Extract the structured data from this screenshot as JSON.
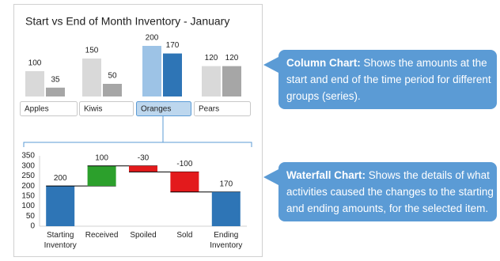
{
  "chart_data": [
    {
      "type": "grouped-bar",
      "title": "Start vs End of Month Inventory - January",
      "categories": [
        "Apples",
        "Kiwis",
        "Oranges",
        "Pears"
      ],
      "series": [
        {
          "color": "#d9d9d9",
          "values": [
            100,
            150,
            200,
            120
          ]
        },
        {
          "color": "#a6a6a6",
          "values": [
            35,
            50,
            170,
            120
          ]
        }
      ],
      "selected": 2,
      "selected_colors": [
        "#9dc3e6",
        "#2e75b6"
      ],
      "ylim": [
        0,
        200
      ]
    },
    {
      "type": "waterfall",
      "categories": [
        "Starting Inventory",
        "Received",
        "Spoiled",
        "Sold",
        "Ending Inventory"
      ],
      "values": [
        200,
        100,
        -30,
        -100,
        170
      ],
      "colors": [
        "#2e75b6",
        "#2ca02c",
        "#e31a1c",
        "#e31a1c",
        "#2e75b6"
      ],
      "totals": [
        0,
        4
      ],
      "ylim": [
        0,
        350
      ],
      "yticks": [
        0,
        50,
        100,
        150,
        200,
        250,
        300,
        350
      ]
    }
  ],
  "callouts": [
    {
      "title": "Column Chart:",
      "text": "Shows the amounts at the start and end of the time period for different groups (series)."
    },
    {
      "title": "Waterfall Chart:",
      "text": "Shows the details of what activities caused the changes to the starting and ending amounts, for the selected item."
    }
  ]
}
